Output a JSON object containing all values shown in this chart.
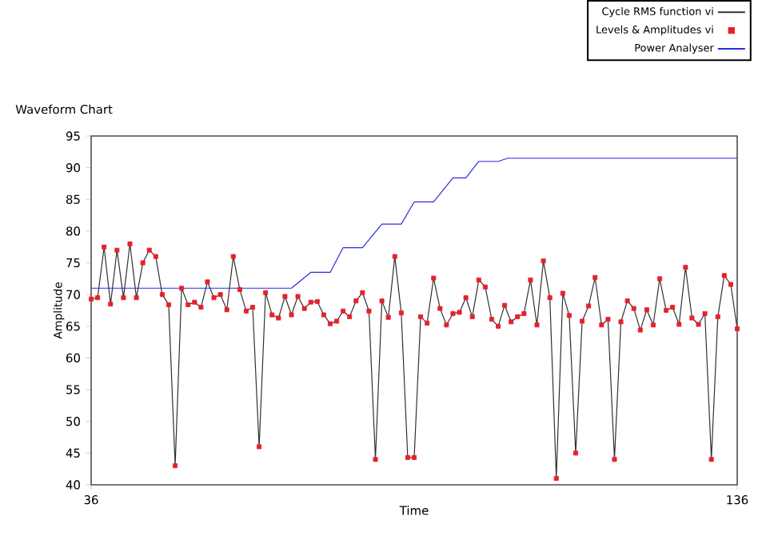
{
  "chart_data": {
    "type": "line",
    "title": "Waveform Chart",
    "xlabel": "Time",
    "ylabel": "Amplitude",
    "xlim": [
      36,
      136
    ],
    "ylim": [
      40,
      95
    ],
    "xticks": [
      36,
      136
    ],
    "yticks": [
      40,
      45,
      50,
      55,
      60,
      65,
      70,
      75,
      80,
      85,
      90,
      95
    ],
    "grid": false,
    "legend": "top right",
    "x": [
      36,
      37,
      38,
      39,
      40,
      41,
      42,
      43,
      44,
      45,
      46,
      47,
      48,
      49,
      50,
      51,
      52,
      53,
      54,
      55,
      56,
      57,
      58,
      59,
      60,
      61,
      62,
      63,
      64,
      65,
      66,
      67,
      68,
      69,
      70,
      71,
      72,
      73,
      74,
      75,
      76,
      77,
      78,
      79,
      80,
      81,
      82,
      83,
      84,
      85,
      86,
      87,
      88,
      89,
      90,
      91,
      92,
      93,
      94,
      95,
      96,
      97,
      98,
      99,
      100,
      101,
      102,
      103,
      104,
      105,
      106,
      107,
      108,
      109,
      110,
      111,
      112,
      113,
      114,
      115,
      116,
      117,
      118,
      119,
      120,
      121,
      122,
      123,
      124,
      125,
      126,
      127,
      128,
      129,
      130,
      131,
      132,
      133,
      134,
      135,
      136
    ],
    "series": [
      {
        "name": "Cycle RMS function vi",
        "color": "#303030",
        "marker": "none",
        "values": [
          69.3,
          69.5,
          77.5,
          68.5,
          77,
          69.5,
          78,
          69.5,
          75,
          77,
          76,
          70,
          68.4,
          43,
          71,
          68.4,
          68.8,
          68,
          72,
          69.5,
          70,
          67.6,
          76,
          70.8,
          67.4,
          68,
          46,
          70.3,
          66.8,
          66.3,
          69.7,
          66.8,
          69.7,
          67.8,
          68.8,
          68.9,
          66.8,
          65.4,
          65.8,
          67.4,
          66.5,
          69,
          70.3,
          67.4,
          44,
          69,
          66.4,
          76,
          67.1,
          44.3,
          44.3,
          66.5,
          65.5,
          72.6,
          67.8,
          65.2,
          67,
          67.2,
          69.5,
          66.5,
          72.3,
          71.2,
          66.1,
          65,
          68.3,
          65.7,
          66.5,
          67,
          72.3,
          65.2,
          75.3,
          69.5,
          41,
          70.2,
          66.7,
          45,
          65.8,
          68.2,
          72.7,
          65.2,
          66.1,
          44,
          65.7,
          69,
          67.8,
          64.4,
          67.6,
          65.2,
          72.5,
          67.5,
          68,
          65.3,
          74.3,
          66.3,
          65.3,
          67,
          44,
          66.5,
          73,
          71.6,
          64.6
        ]
      },
      {
        "name": "Levels & Amplitudes vi",
        "type": "scatter",
        "color": "#e8202a",
        "marker": "square",
        "values": [
          69.3,
          69.5,
          77.5,
          68.5,
          77,
          69.5,
          78,
          69.5,
          75,
          77,
          76,
          70,
          68.4,
          43,
          71,
          68.4,
          68.8,
          68,
          72,
          69.5,
          70,
          67.6,
          76,
          70.8,
          67.4,
          68,
          46,
          70.3,
          66.8,
          66.3,
          69.7,
          66.8,
          69.7,
          67.8,
          68.8,
          68.9,
          66.8,
          65.4,
          65.8,
          67.4,
          66.5,
          69,
          70.3,
          67.4,
          44,
          69,
          66.4,
          76,
          67.1,
          44.3,
          44.3,
          66.5,
          65.5,
          72.6,
          67.8,
          65.2,
          67,
          67.2,
          69.5,
          66.5,
          72.3,
          71.2,
          66.1,
          65,
          68.3,
          65.7,
          66.5,
          67,
          72.3,
          65.2,
          75.3,
          69.5,
          41,
          70.2,
          66.7,
          45,
          65.8,
          68.2,
          72.7,
          65.2,
          66.1,
          44,
          65.7,
          69,
          67.8,
          64.4,
          67.6,
          65.2,
          72.5,
          67.5,
          68,
          65.3,
          74.3,
          66.3,
          65.3,
          67,
          44,
          66.5,
          73,
          71.6,
          64.6
        ]
      },
      {
        "name": "Power Analyser",
        "color": "#2a2ae0",
        "marker": "none",
        "x": [
          36,
          67,
          70,
          73,
          75,
          78,
          81,
          84,
          86,
          89,
          92,
          94,
          96,
          99,
          100.5,
          136
        ],
        "values": [
          71,
          71,
          73.5,
          73.5,
          77.4,
          77.4,
          81.1,
          81.1,
          84.6,
          84.6,
          88.4,
          88.4,
          91,
          91,
          91.5,
          91.5
        ]
      }
    ]
  }
}
